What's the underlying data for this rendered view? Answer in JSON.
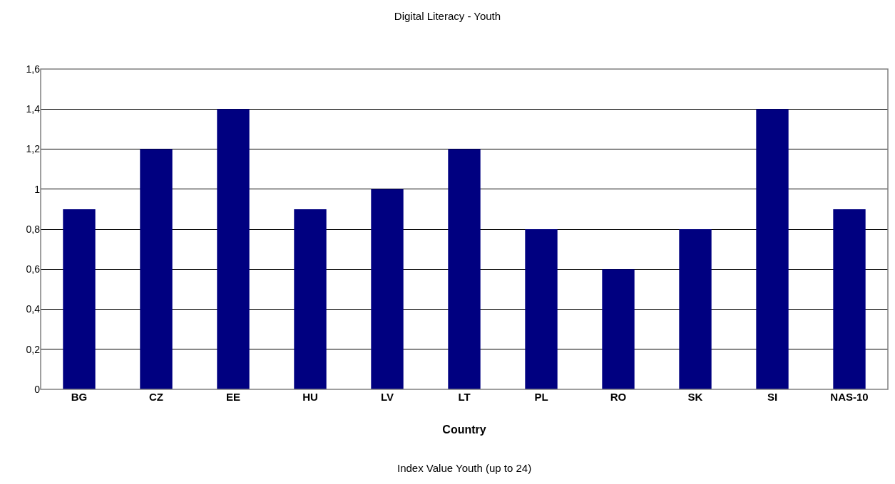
{
  "chart_data": {
    "type": "bar",
    "title": "Digital Literacy - Youth",
    "xlabel": "Country",
    "annotations": [
      "Index Value Youth (up to 24)"
    ],
    "categories": [
      "BG",
      "CZ",
      "EE",
      "HU",
      "LV",
      "LT",
      "PL",
      "RO",
      "SK",
      "SI",
      "NAS-10"
    ],
    "values": [
      0.9,
      1.2,
      1.4,
      0.9,
      1.0,
      1.2,
      0.8,
      0.6,
      0.8,
      1.4,
      0.9
    ],
    "color": "#000080",
    "ylim": [
      0,
      1.6
    ],
    "yticks": [
      0,
      {
        "value": 0.2,
        "label": "0,2"
      },
      {
        "value": 0.4,
        "label": "0,4"
      },
      {
        "value": 0.6,
        "label": "0,6"
      },
      {
        "value": 0.8,
        "label": "0,8"
      },
      1,
      {
        "value": 1.2,
        "label": "1,2"
      },
      {
        "value": 1.4,
        "label": "1,4"
      },
      {
        "value": 1.6,
        "label": "1,6"
      }
    ],
    "grid": "y",
    "legend": false
  }
}
